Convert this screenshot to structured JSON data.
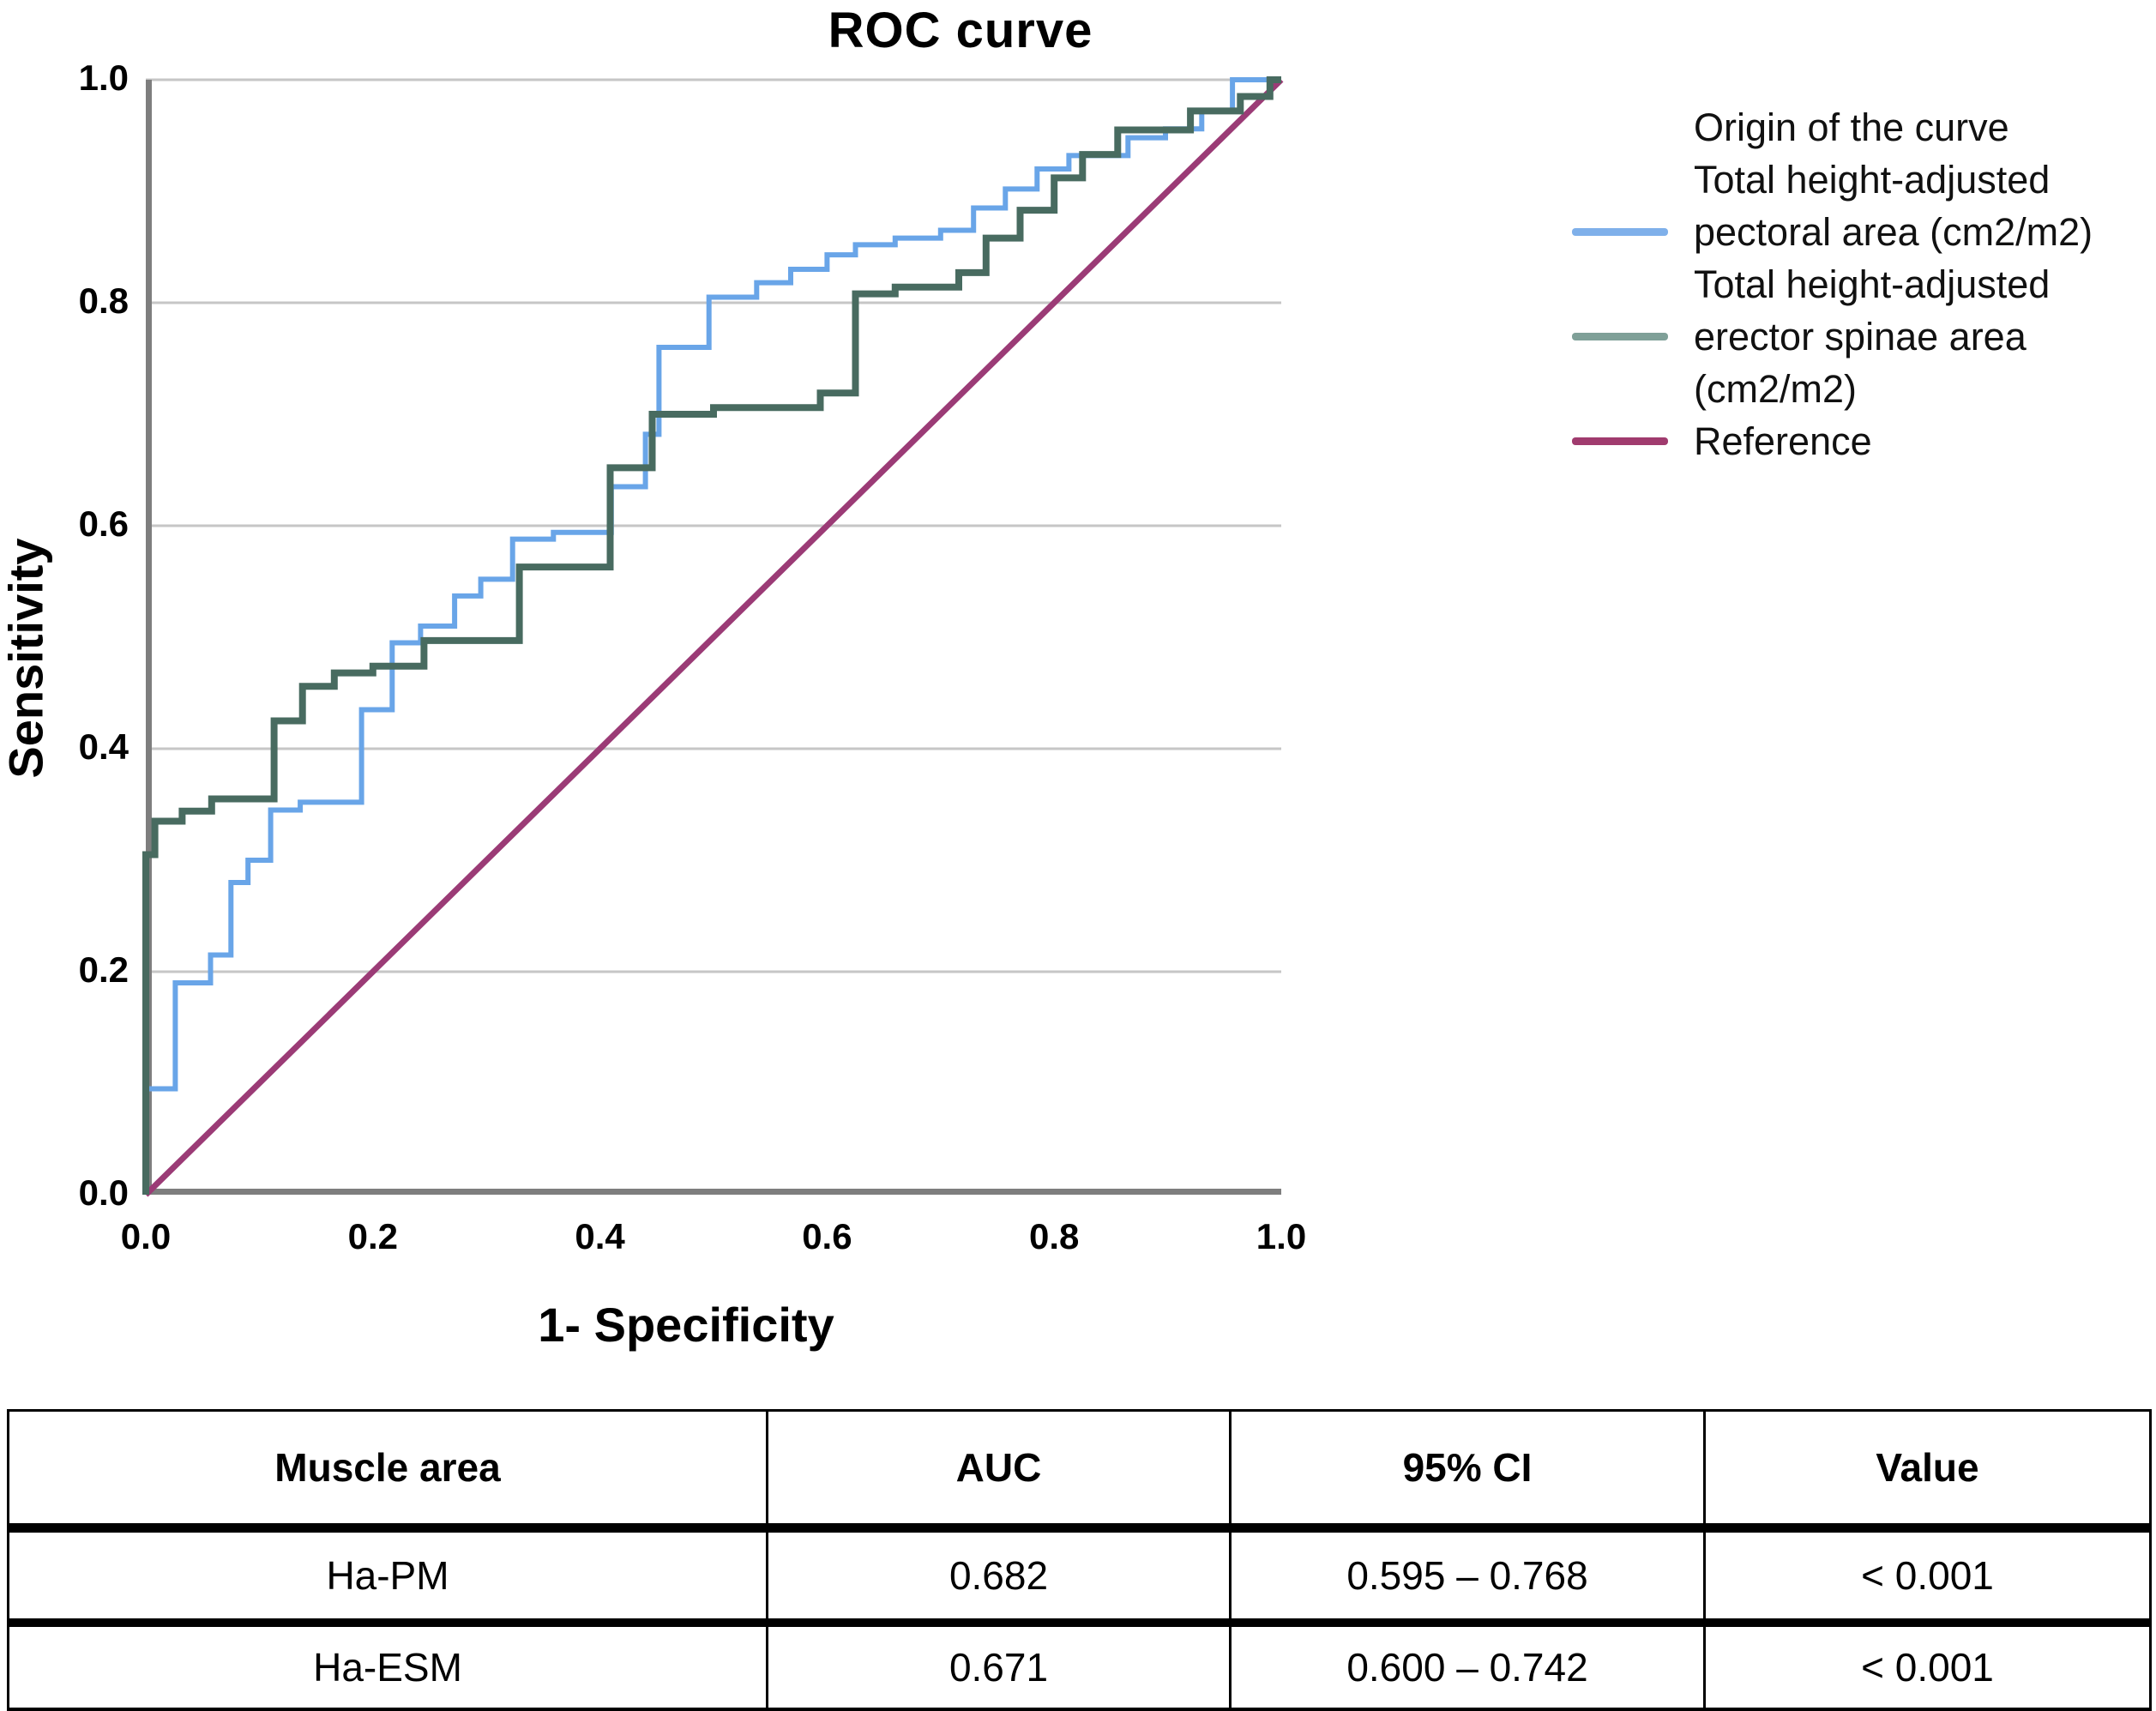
{
  "figure": {
    "title": "ROC curve",
    "x_axis": {
      "label": "1- Specificity",
      "tick_labels": [
        "0.0",
        "0.2",
        "0.4",
        "0.6",
        "0.8",
        "1.0"
      ]
    },
    "y_axis": {
      "label": "Sensitivity",
      "tick_labels": [
        "0.0",
        "0.2",
        "0.4",
        "0.6",
        "0.8",
        "1.0"
      ]
    },
    "legend": {
      "title": "Origin of the curve",
      "entries": [
        {
          "lines": [
            "Total height-adjusted",
            "pectoral area (cm2/m2)"
          ],
          "color": "#7FB0EA",
          "swatch_line": 1
        },
        {
          "lines": [
            "Total height-adjusted",
            "erector spinae area",
            "(cm2/m2)"
          ],
          "color": "#7FA098",
          "swatch_line": 1
        },
        {
          "lines": [
            "Reference"
          ],
          "color": "#A03B6E",
          "swatch_line": 0
        }
      ]
    }
  },
  "colors": {
    "pectoral_curve": "#69A5E8",
    "erector_curve": "#486B60",
    "reference_line": "#9B3B76",
    "gridline": "#C6C6C6",
    "axis_line": "#7E7E7E",
    "table_border": "#000000"
  },
  "chart_data": {
    "type": "line",
    "title": "ROC curve",
    "xlabel": "1- Specificity",
    "ylabel": "Sensitivity",
    "xlim": [
      0,
      1
    ],
    "ylim": [
      0,
      1
    ],
    "xticks": [
      0.0,
      0.2,
      0.4,
      0.6,
      0.8,
      1.0
    ],
    "yticks": [
      0.0,
      0.2,
      0.4,
      0.6,
      0.8,
      1.0
    ],
    "grid": "horizontal",
    "legend_position": "right",
    "legend_title": "Origin of the curve",
    "series": [
      {
        "name": "Total height-adjusted pectoral area (cm2/m2)",
        "style": "step",
        "color": "#69A5E8",
        "points": [
          [
            0,
            0
          ],
          [
            0,
            0.095
          ],
          [
            0.026,
            0.095
          ],
          [
            0.026,
            0.19
          ],
          [
            0.057,
            0.19
          ],
          [
            0.057,
            0.215
          ],
          [
            0.075,
            0.215
          ],
          [
            0.075,
            0.28
          ],
          [
            0.09,
            0.28
          ],
          [
            0.09,
            0.3
          ],
          [
            0.11,
            0.3
          ],
          [
            0.11,
            0.345
          ],
          [
            0.136,
            0.345
          ],
          [
            0.136,
            0.352
          ],
          [
            0.19,
            0.352
          ],
          [
            0.19,
            0.435
          ],
          [
            0.217,
            0.435
          ],
          [
            0.217,
            0.495
          ],
          [
            0.242,
            0.495
          ],
          [
            0.242,
            0.51
          ],
          [
            0.272,
            0.51
          ],
          [
            0.272,
            0.537
          ],
          [
            0.295,
            0.537
          ],
          [
            0.295,
            0.552
          ],
          [
            0.323,
            0.552
          ],
          [
            0.323,
            0.588
          ],
          [
            0.359,
            0.588
          ],
          [
            0.359,
            0.594
          ],
          [
            0.41,
            0.594
          ],
          [
            0.41,
            0.635
          ],
          [
            0.44,
            0.635
          ],
          [
            0.44,
            0.682
          ],
          [
            0.452,
            0.682
          ],
          [
            0.452,
            0.76
          ],
          [
            0.496,
            0.76
          ],
          [
            0.496,
            0.805
          ],
          [
            0.538,
            0.805
          ],
          [
            0.538,
            0.818
          ],
          [
            0.568,
            0.818
          ],
          [
            0.568,
            0.83
          ],
          [
            0.6,
            0.83
          ],
          [
            0.6,
            0.843
          ],
          [
            0.625,
            0.843
          ],
          [
            0.625,
            0.852
          ],
          [
            0.66,
            0.852
          ],
          [
            0.66,
            0.858
          ],
          [
            0.7,
            0.858
          ],
          [
            0.7,
            0.865
          ],
          [
            0.729,
            0.865
          ],
          [
            0.729,
            0.885
          ],
          [
            0.757,
            0.885
          ],
          [
            0.757,
            0.902
          ],
          [
            0.785,
            0.902
          ],
          [
            0.785,
            0.92
          ],
          [
            0.813,
            0.92
          ],
          [
            0.813,
            0.932
          ],
          [
            0.865,
            0.932
          ],
          [
            0.865,
            0.948
          ],
          [
            0.898,
            0.948
          ],
          [
            0.898,
            0.956
          ],
          [
            0.93,
            0.956
          ],
          [
            0.93,
            0.972
          ],
          [
            0.957,
            0.972
          ],
          [
            0.957,
            1
          ],
          [
            1,
            1
          ]
        ]
      },
      {
        "name": "Total height-adjusted erector spinae area (cm2/m2)",
        "style": "step",
        "color": "#486B60",
        "points": [
          [
            0,
            0
          ],
          [
            0,
            0.305
          ],
          [
            0.008,
            0.305
          ],
          [
            0.008,
            0.335
          ],
          [
            0.032,
            0.335
          ],
          [
            0.032,
            0.344
          ],
          [
            0.058,
            0.344
          ],
          [
            0.058,
            0.355
          ],
          [
            0.113,
            0.355
          ],
          [
            0.113,
            0.425
          ],
          [
            0.138,
            0.425
          ],
          [
            0.138,
            0.456
          ],
          [
            0.166,
            0.456
          ],
          [
            0.166,
            0.468
          ],
          [
            0.2,
            0.468
          ],
          [
            0.2,
            0.474
          ],
          [
            0.245,
            0.474
          ],
          [
            0.245,
            0.497
          ],
          [
            0.329,
            0.497
          ],
          [
            0.329,
            0.563
          ],
          [
            0.409,
            0.563
          ],
          [
            0.409,
            0.652
          ],
          [
            0.446,
            0.652
          ],
          [
            0.446,
            0.7
          ],
          [
            0.5,
            0.7
          ],
          [
            0.5,
            0.706
          ],
          [
            0.594,
            0.706
          ],
          [
            0.594,
            0.719
          ],
          [
            0.625,
            0.719
          ],
          [
            0.625,
            0.808
          ],
          [
            0.66,
            0.808
          ],
          [
            0.66,
            0.814
          ],
          [
            0.716,
            0.814
          ],
          [
            0.716,
            0.827
          ],
          [
            0.74,
            0.827
          ],
          [
            0.74,
            0.858
          ],
          [
            0.77,
            0.858
          ],
          [
            0.77,
            0.883
          ],
          [
            0.8,
            0.883
          ],
          [
            0.8,
            0.912
          ],
          [
            0.825,
            0.912
          ],
          [
            0.825,
            0.933
          ],
          [
            0.856,
            0.933
          ],
          [
            0.856,
            0.955
          ],
          [
            0.92,
            0.955
          ],
          [
            0.92,
            0.972
          ],
          [
            0.964,
            0.972
          ],
          [
            0.964,
            0.985
          ],
          [
            0.99,
            0.985
          ],
          [
            0.99,
            1
          ],
          [
            1,
            1
          ]
        ]
      },
      {
        "name": "Reference",
        "style": "line",
        "color": "#9B3B76",
        "points": [
          [
            0,
            0
          ],
          [
            1,
            1
          ]
        ]
      }
    ]
  },
  "table": {
    "headers": [
      "Muscle area",
      "AUC",
      "95% CI",
      "Value"
    ],
    "rows": [
      [
        "Ha-PM",
        "0.682",
        "0.595 – 0.768",
        "< 0.001"
      ],
      [
        "Ha-ESM",
        "0.671",
        "0.600 – 0.742",
        "< 0.001"
      ]
    ]
  }
}
